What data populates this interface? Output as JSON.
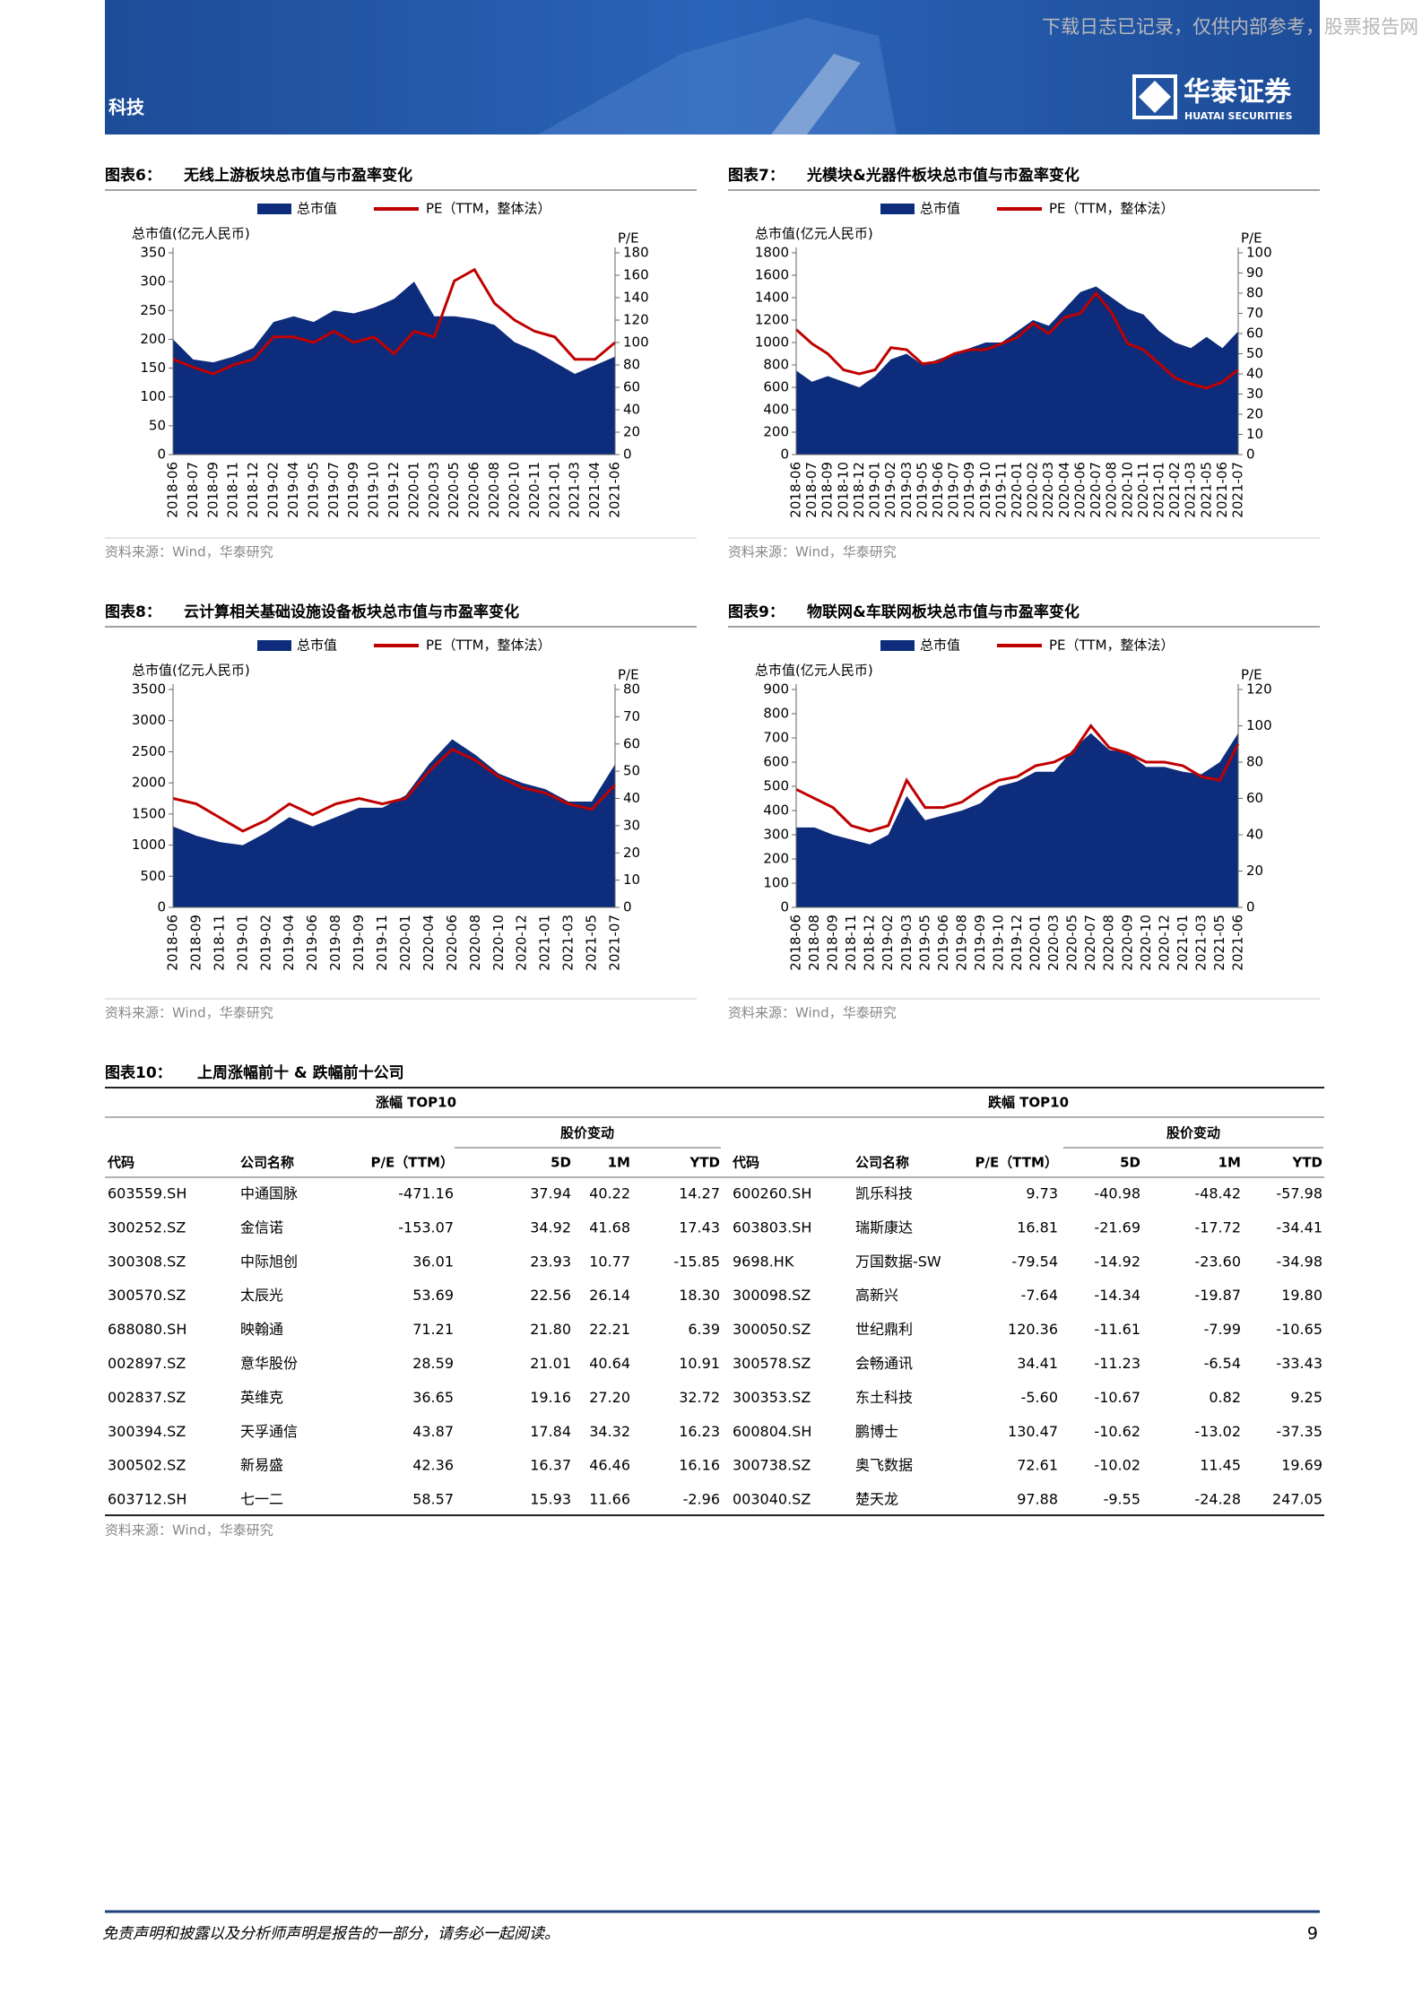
{
  "header": {
    "section": "科技",
    "watermark": "下载日志已记录，仅供内部参考，股票报告网",
    "logo_cn": "华泰证券",
    "logo_en": "HUATAI SECURITIES"
  },
  "chart_data": [
    {
      "type": "area-line",
      "label": "图表6：",
      "title": "无线上游板块总市值与市盈率变化",
      "ylabel": "总市值(亿元人民币)",
      "y2label": "P/E",
      "categories": [
        "2018-06",
        "2018-07",
        "2018-09",
        "2018-11",
        "2018-12",
        "2019-02",
        "2019-04",
        "2019-05",
        "2019-07",
        "2019-09",
        "2019-10",
        "2019-12",
        "2020-01",
        "2020-03",
        "2020-05",
        "2020-06",
        "2020-08",
        "2020-10",
        "2020-11",
        "2021-01",
        "2021-03",
        "2021-04",
        "2021-06"
      ],
      "series": [
        {
          "name": "总市值",
          "color": "#0d2c7c",
          "values": [
            200,
            165,
            160,
            170,
            185,
            230,
            240,
            230,
            250,
            245,
            255,
            270,
            300,
            240,
            240,
            235,
            225,
            195,
            180,
            160,
            140,
            155,
            170
          ]
        },
        {
          "name": "PE（TTM，整体法）",
          "color": "#c00000",
          "axis": "y2",
          "values": [
            85,
            78,
            72,
            80,
            85,
            105,
            105,
            100,
            110,
            100,
            105,
            90,
            110,
            105,
            155,
            165,
            135,
            120,
            110,
            105,
            85,
            85,
            100
          ]
        }
      ],
      "ylim": [
        0,
        350
      ],
      "yticks": [
        0,
        50,
        100,
        150,
        200,
        250,
        300,
        350
      ],
      "y2lim": [
        0,
        180
      ],
      "y2ticks": [
        0,
        20,
        40,
        60,
        80,
        100,
        120,
        140,
        160,
        180
      ],
      "source": "资料来源：Wind，华泰研究"
    },
    {
      "type": "area-line",
      "label": "图表7：",
      "title": "光模块&光器件板块总市值与市盈率变化",
      "ylabel": "总市值(亿元人民币)",
      "y2label": "P/E",
      "categories": [
        "2018-06",
        "2018-07",
        "2018-09",
        "2018-10",
        "2018-12",
        "2019-01",
        "2019-02",
        "2019-03",
        "2019-05",
        "2019-06",
        "2019-07",
        "2019-09",
        "2019-10",
        "2019-11",
        "2020-01",
        "2020-02",
        "2020-03",
        "2020-04",
        "2020-06",
        "2020-07",
        "2020-08",
        "2020-10",
        "2020-11",
        "2021-01",
        "2021-02",
        "2021-03",
        "2021-05",
        "2021-06",
        "2021-07"
      ],
      "series": [
        {
          "name": "总市值",
          "color": "#0d2c7c",
          "values": [
            750,
            650,
            700,
            650,
            600,
            700,
            850,
            900,
            800,
            850,
            900,
            950,
            1000,
            1000,
            1100,
            1200,
            1150,
            1300,
            1450,
            1500,
            1400,
            1300,
            1250,
            1100,
            1000,
            950,
            1050,
            950,
            1100
          ]
        },
        {
          "name": "PE（TTM，整体法）",
          "color": "#c00000",
          "axis": "y2",
          "values": [
            62,
            55,
            50,
            42,
            40,
            42,
            53,
            52,
            45,
            46,
            50,
            52,
            52,
            55,
            58,
            65,
            60,
            68,
            70,
            80,
            70,
            55,
            52,
            45,
            38,
            35,
            33,
            36,
            42
          ]
        }
      ],
      "ylim": [
        0,
        1800
      ],
      "yticks": [
        0,
        200,
        400,
        600,
        800,
        1000,
        1200,
        1400,
        1600,
        1800
      ],
      "y2lim": [
        0,
        100
      ],
      "y2ticks": [
        0,
        10,
        20,
        30,
        40,
        50,
        60,
        70,
        80,
        90,
        100
      ],
      "source": "资料来源：Wind，华泰研究"
    },
    {
      "type": "area-line",
      "label": "图表8：",
      "title": "云计算相关基础设施设备板块总市值与市盈率变化",
      "ylabel": "总市值(亿元人民币)",
      "y2label": "P/E",
      "categories": [
        "2018-06",
        "2018-09",
        "2018-11",
        "2019-01",
        "2019-02",
        "2019-04",
        "2019-06",
        "2019-08",
        "2019-09",
        "2019-11",
        "2020-01",
        "2020-04",
        "2020-06",
        "2020-08",
        "2020-10",
        "2020-12",
        "2021-01",
        "2021-03",
        "2021-05",
        "2021-07"
      ],
      "series": [
        {
          "name": "总市值",
          "color": "#0d2c7c",
          "values": [
            1300,
            1150,
            1050,
            1000,
            1200,
            1450,
            1300,
            1450,
            1600,
            1600,
            1800,
            2300,
            2700,
            2450,
            2150,
            2000,
            1900,
            1700,
            1700,
            2300
          ]
        },
        {
          "name": "PE（TTM，整体法）",
          "color": "#c00000",
          "axis": "y2",
          "values": [
            40,
            38,
            33,
            28,
            32,
            38,
            34,
            38,
            40,
            38,
            40,
            50,
            58,
            54,
            48,
            44,
            42,
            38,
            36,
            45
          ]
        }
      ],
      "ylim": [
        0,
        3500
      ],
      "yticks": [
        0,
        500,
        1000,
        1500,
        2000,
        2500,
        3000,
        3500
      ],
      "y2lim": [
        0,
        80
      ],
      "y2ticks": [
        0,
        10,
        20,
        30,
        40,
        50,
        60,
        70,
        80
      ],
      "source": "资料来源：Wind，华泰研究"
    },
    {
      "type": "area-line",
      "label": "图表9：",
      "title": "物联网&车联网板块总市值与市盈率变化",
      "ylabel": "总市值(亿元人民币)",
      "y2label": "P/E",
      "categories": [
        "2018-06",
        "2018-08",
        "2018-09",
        "2018-11",
        "2018-12",
        "2019-02",
        "2019-03",
        "2019-05",
        "2019-06",
        "2019-08",
        "2019-09",
        "2019-10",
        "2019-12",
        "2020-01",
        "2020-03",
        "2020-05",
        "2020-07",
        "2020-08",
        "2020-09",
        "2020-10",
        "2020-12",
        "2021-01",
        "2021-03",
        "2021-05",
        "2021-06"
      ],
      "series": [
        {
          "name": "总市值",
          "color": "#0d2c7c",
          "values": [
            330,
            330,
            300,
            280,
            260,
            300,
            460,
            360,
            380,
            400,
            430,
            500,
            520,
            560,
            560,
            650,
            720,
            650,
            640,
            580,
            580,
            560,
            550,
            600,
            720
          ]
        },
        {
          "name": "PE（TTM，整体法）",
          "color": "#c00000",
          "axis": "y2",
          "values": [
            65,
            60,
            55,
            45,
            42,
            45,
            70,
            55,
            55,
            58,
            65,
            70,
            72,
            78,
            80,
            85,
            100,
            88,
            85,
            80,
            80,
            78,
            72,
            70,
            90
          ]
        }
      ],
      "ylim": [
        0,
        900
      ],
      "yticks": [
        0,
        100,
        200,
        300,
        400,
        500,
        600,
        700,
        800,
        900
      ],
      "y2lim": [
        0,
        120
      ],
      "y2ticks": [
        0,
        20,
        40,
        60,
        80,
        100,
        120
      ],
      "source": "资料来源：Wind，华泰研究"
    }
  ],
  "table": {
    "label": "图表10：",
    "title": "上周涨幅前十 & 跌幅前十公司",
    "groups": [
      "涨幅 TOP10",
      "跌幅 TOP10"
    ],
    "subgroups": [
      "股价变动",
      "股价变动"
    ],
    "columns": [
      "代码",
      "公司名称",
      "P/E（TTM）",
      "5D",
      "1M",
      "YTD",
      "代码",
      "公司名称",
      "P/E（TTM）",
      "5D",
      "1M",
      "YTD"
    ],
    "rows": [
      [
        "603559.SH",
        "中通国脉",
        "-471.16",
        "37.94",
        "40.22",
        "14.27",
        "600260.SH",
        "凯乐科技",
        "9.73",
        "-40.98",
        "-48.42",
        "-57.98"
      ],
      [
        "300252.SZ",
        "金信诺",
        "-153.07",
        "34.92",
        "41.68",
        "17.43",
        "603803.SH",
        "瑞斯康达",
        "16.81",
        "-21.69",
        "-17.72",
        "-34.41"
      ],
      [
        "300308.SZ",
        "中际旭创",
        "36.01",
        "23.93",
        "10.77",
        "-15.85",
        "9698.HK",
        "万国数据-SW",
        "-79.54",
        "-14.92",
        "-23.60",
        "-34.98"
      ],
      [
        "300570.SZ",
        "太辰光",
        "53.69",
        "22.56",
        "26.14",
        "18.30",
        "300098.SZ",
        "高新兴",
        "-7.64",
        "-14.34",
        "-19.87",
        "19.80"
      ],
      [
        "688080.SH",
        "映翰通",
        "71.21",
        "21.80",
        "22.21",
        "6.39",
        "300050.SZ",
        "世纪鼎利",
        "120.36",
        "-11.61",
        "-7.99",
        "-10.65"
      ],
      [
        "002897.SZ",
        "意华股份",
        "28.59",
        "21.01",
        "40.64",
        "10.91",
        "300578.SZ",
        "会畅通讯",
        "34.41",
        "-11.23",
        "-6.54",
        "-33.43"
      ],
      [
        "002837.SZ",
        "英维克",
        "36.65",
        "19.16",
        "27.20",
        "32.72",
        "300353.SZ",
        "东土科技",
        "-5.60",
        "-10.67",
        "0.82",
        "9.25"
      ],
      [
        "300394.SZ",
        "天孚通信",
        "43.87",
        "17.84",
        "34.32",
        "16.23",
        "600804.SH",
        "鹏博士",
        "130.47",
        "-10.62",
        "-13.02",
        "-37.35"
      ],
      [
        "300502.SZ",
        "新易盛",
        "42.36",
        "16.37",
        "46.46",
        "16.16",
        "300738.SZ",
        "奥飞数据",
        "72.61",
        "-10.02",
        "11.45",
        "19.69"
      ],
      [
        "603712.SH",
        "七一二",
        "58.57",
        "15.93",
        "11.66",
        "-2.96",
        "003040.SZ",
        "楚天龙",
        "97.88",
        "-9.55",
        "-24.28",
        "247.05"
      ]
    ],
    "source": "资料来源：Wind，华泰研究"
  },
  "footer": {
    "disclaimer": "免责声明和披露以及分析师声明是报告的一部分，请务必一起阅读。",
    "page": "9"
  }
}
